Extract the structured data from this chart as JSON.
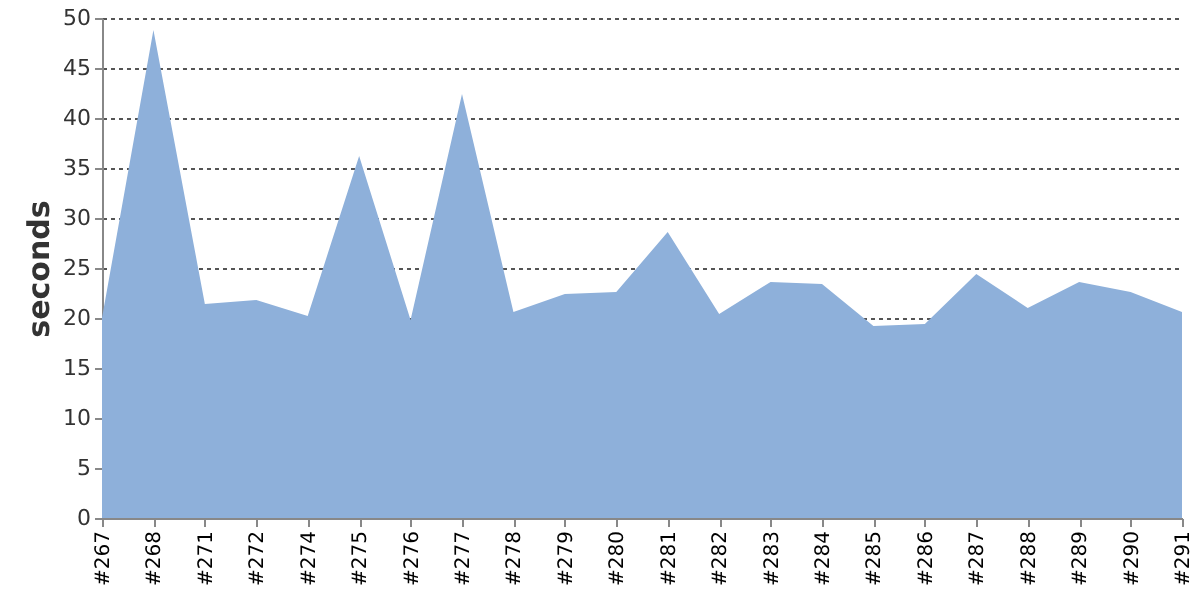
{
  "chart_data": {
    "type": "area",
    "ylabel": "seconds",
    "categories": [
      "#267",
      "#268",
      "#271",
      "#272",
      "#274",
      "#275",
      "#276",
      "#277",
      "#278",
      "#279",
      "#280",
      "#281",
      "#282",
      "#283",
      "#284",
      "#285",
      "#286",
      "#287",
      "#288",
      "#289",
      "#290",
      "#291"
    ],
    "series": [
      {
        "color": "#8eb0da",
        "values": [
          20,
          48.8,
          21.4,
          21.8,
          20.2,
          36.2,
          19.8,
          42.4,
          20.6,
          22.4,
          22.6,
          28.6,
          20.4,
          23.6,
          23.4,
          19.2,
          19.4,
          24.4,
          21,
          23.6,
          22.6,
          20.6
        ]
      }
    ],
    "ylim": [
      0,
      50
    ],
    "yticks": [
      0,
      5,
      10,
      15,
      20,
      25,
      30,
      35,
      40,
      45,
      50
    ],
    "grid": "y"
  }
}
